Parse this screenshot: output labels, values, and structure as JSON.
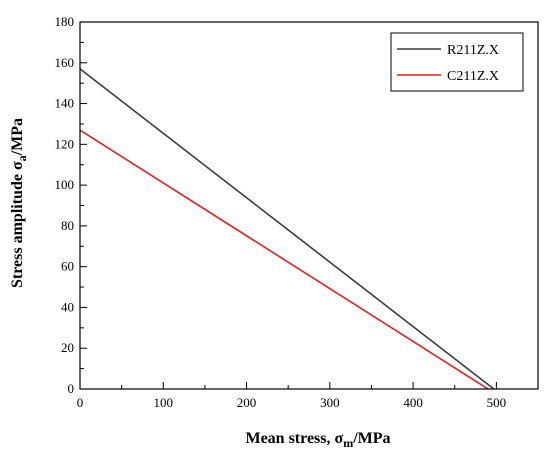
{
  "chart_data": {
    "type": "line",
    "xlabel": {
      "main": "Mean stress, ",
      "symbol": "σ",
      "sub": "m",
      "unit": "/MPa"
    },
    "ylabel": {
      "main": "Stress amplitude ",
      "symbol": "σ",
      "sub": "a",
      "unit": "/MPa"
    },
    "xlim": [
      0,
      550
    ],
    "ylim": [
      0,
      180
    ],
    "xticks": [
      0,
      100,
      200,
      300,
      400,
      500
    ],
    "yticks": [
      0,
      20,
      40,
      60,
      80,
      100,
      120,
      140,
      160,
      180
    ],
    "grid": false,
    "legend_position": "top-right",
    "series": [
      {
        "name": "R211Z.X",
        "color": "#3c3c3c",
        "x": [
          0,
          497
        ],
        "y": [
          157,
          0
        ]
      },
      {
        "name": "C211Z.X",
        "color": "#e02020",
        "x": [
          0,
          490
        ],
        "y": [
          127,
          0
        ]
      }
    ]
  }
}
